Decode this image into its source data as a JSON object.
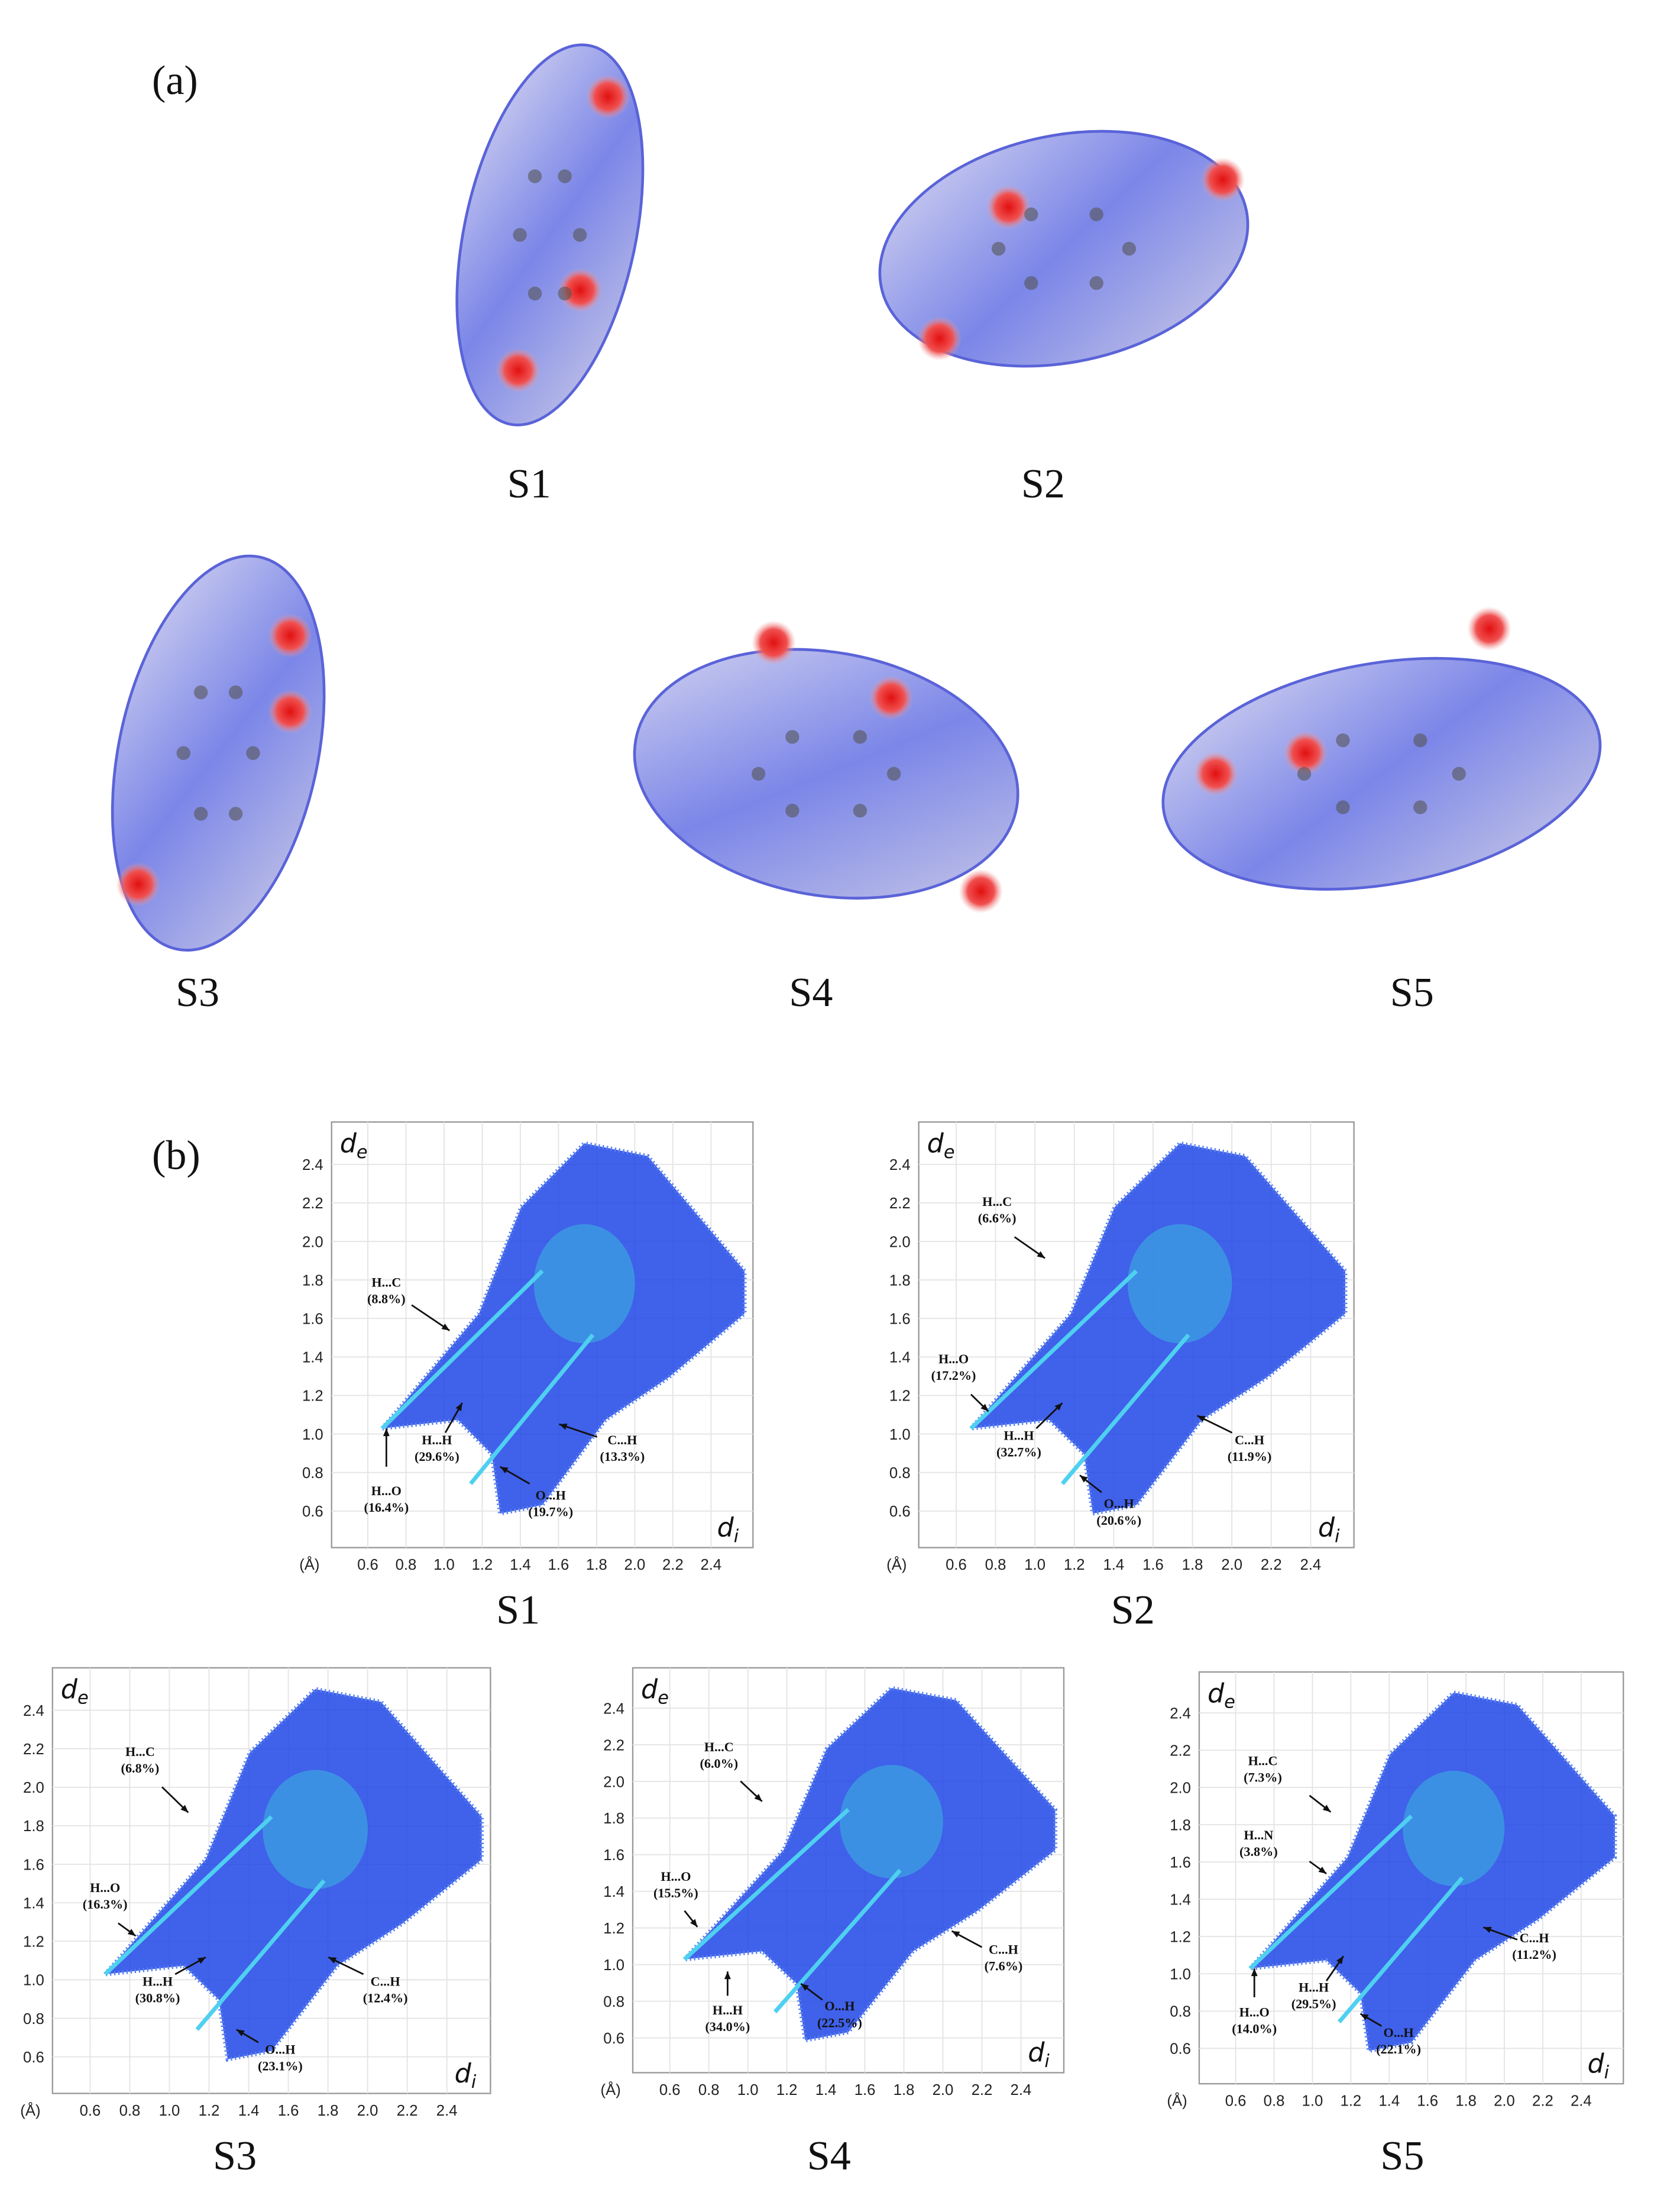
{
  "panel_a": {
    "label": "(a)",
    "structures": [
      "S1",
      "S2",
      "S3",
      "S4",
      "S5"
    ]
  },
  "panel_b": {
    "label": "(b)",
    "unit": "(Å)",
    "y_axis_label": "d",
    "y_axis_sub": "e",
    "x_axis_label": "d",
    "x_axis_sub": "i",
    "plots": [
      {
        "name": "S1",
        "xticks": [
          "0.6",
          "0.8",
          "1.0",
          "1.2",
          "1.4",
          "1.6",
          "1.8",
          "2.0",
          "2.2",
          "2.4"
        ],
        "yticks": [
          "0.6",
          "0.8",
          "1.0",
          "1.2",
          "1.4",
          "1.6",
          "1.8",
          "2.0",
          "2.2",
          "2.4"
        ],
        "annotations": [
          {
            "label": "H...C",
            "percent": "(8.8%)"
          },
          {
            "label": "H...H",
            "percent": "(29.6%)"
          },
          {
            "label": "H...O",
            "percent": "(16.4%)"
          },
          {
            "label": "O...H",
            "percent": "(19.7%)"
          },
          {
            "label": "C...H",
            "percent": "(13.3%)"
          }
        ]
      },
      {
        "name": "S2",
        "xticks": [
          "0.6",
          "0.8",
          "1.0",
          "1.2",
          "1.4",
          "1.6",
          "1.8",
          "2.0",
          "2.2",
          "2.4"
        ],
        "yticks": [
          "0.6",
          "0.8",
          "1.0",
          "1.2",
          "1.4",
          "1.6",
          "1.8",
          "2.0",
          "2.2",
          "2.4"
        ],
        "annotations": [
          {
            "label": "H...C",
            "percent": "(6.6%)"
          },
          {
            "label": "H...O",
            "percent": "(17.2%)"
          },
          {
            "label": "H...H",
            "percent": "(32.7%)"
          },
          {
            "label": "O...H",
            "percent": "(20.6%)"
          },
          {
            "label": "C...H",
            "percent": "(11.9%)"
          }
        ]
      },
      {
        "name": "S3",
        "xticks": [
          "0.6",
          "0.8",
          "1.0",
          "1.2",
          "1.4",
          "1.6",
          "1.8",
          "2.0",
          "2.2",
          "2.4"
        ],
        "yticks": [
          "0.6",
          "0.8",
          "1.0",
          "1.2",
          "1.4",
          "1.6",
          "1.8",
          "2.0",
          "2.2",
          "2.4"
        ],
        "annotations": [
          {
            "label": "H...C",
            "percent": "(6.8%)"
          },
          {
            "label": "H...O",
            "percent": "(16.3%)"
          },
          {
            "label": "H...H",
            "percent": "(30.8%)"
          },
          {
            "label": "O...H",
            "percent": "(23.1%)"
          },
          {
            "label": "C...H",
            "percent": "(12.4%)"
          }
        ]
      },
      {
        "name": "S4",
        "xticks": [
          "0.6",
          "0.8",
          "1.0",
          "1.2",
          "1.4",
          "1.6",
          "1.8",
          "2.0",
          "2.2",
          "2.4"
        ],
        "yticks": [
          "0.6",
          "0.8",
          "1.0",
          "1.2",
          "1.4",
          "1.6",
          "1.8",
          "2.0",
          "2.2",
          "2.4"
        ],
        "annotations": [
          {
            "label": "H...C",
            "percent": "(6.0%)"
          },
          {
            "label": "H...O",
            "percent": "(15.5%)"
          },
          {
            "label": "H...H",
            "percent": "(34.0%)"
          },
          {
            "label": "O...H",
            "percent": "(22.5%)"
          },
          {
            "label": "C...H",
            "percent": "(7.6%)"
          }
        ]
      },
      {
        "name": "S5",
        "xticks": [
          "0.6",
          "0.8",
          "1.0",
          "1.2",
          "1.4",
          "1.6",
          "1.8",
          "2.0",
          "2.2",
          "2.4"
        ],
        "yticks": [
          "0.6",
          "0.8",
          "1.0",
          "1.2",
          "1.4",
          "1.6",
          "1.8",
          "2.0",
          "2.2",
          "2.4"
        ],
        "annotations": [
          {
            "label": "H...C",
            "percent": "(7.3%)"
          },
          {
            "label": "H...N",
            "percent": "(3.8%)"
          },
          {
            "label": "H...O",
            "percent": "(14.0%)"
          },
          {
            "label": "H...H",
            "percent": "(29.5%)"
          },
          {
            "label": "O...H",
            "percent": "(22.1%)"
          },
          {
            "label": "C...H",
            "percent": "(11.2%)"
          }
        ]
      }
    ]
  }
}
